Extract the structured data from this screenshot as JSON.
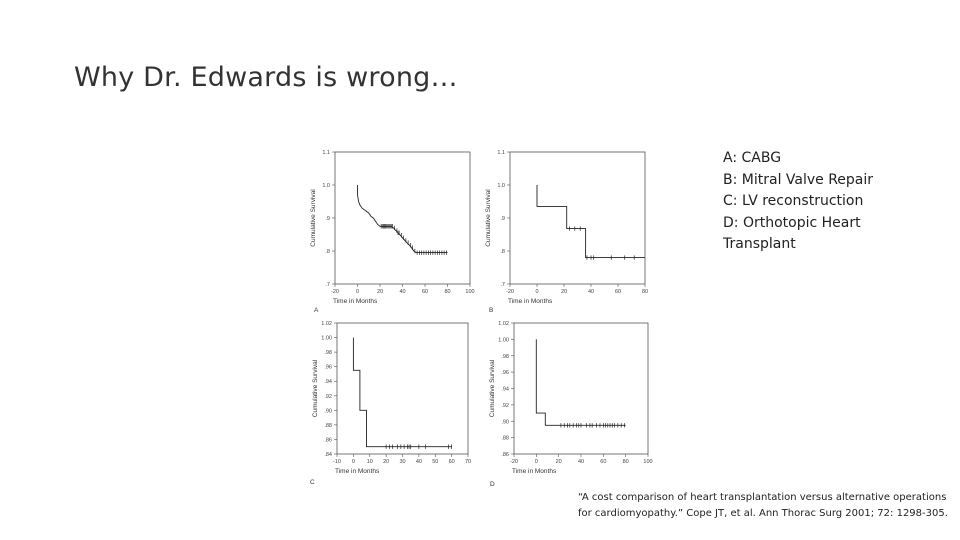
{
  "slide": {
    "title": "Why Dr. Edwards is wrong…",
    "legend": [
      "A: CABG",
      "B: Mitral Valve Repair",
      "C: LV reconstruction",
      "D: Orthotopic Heart Transplant"
    ],
    "citation": "“A cost comparison of heart transplantation versus alternative operations for cardiomyopathy.” Cope JT, et al. Ann Thorac Surg 2001; 72: 1298-305."
  },
  "chart_data": [
    {
      "type": "line",
      "letter": "A",
      "xlabel": "Time in Months",
      "ylabel": "Cumulative Survival",
      "xlim": [
        -20,
        100
      ],
      "ylim": [
        0.7,
        1.1
      ],
      "xticks": [
        "-20",
        "0",
        "20",
        "40",
        "60",
        "80",
        "100"
      ],
      "yticks": [
        ".7",
        ".8",
        ".9",
        "1.0",
        "1.1"
      ],
      "tick_values_x": [
        -20,
        0,
        20,
        40,
        60,
        80,
        100
      ],
      "tick_values_y": [
        0.7,
        0.8,
        0.9,
        1.0,
        1.1
      ],
      "points": [
        [
          0,
          1.0
        ],
        [
          0,
          0.97
        ],
        [
          1,
          0.95
        ],
        [
          2,
          0.94
        ],
        [
          3,
          0.935
        ],
        [
          4,
          0.93
        ],
        [
          6,
          0.925
        ],
        [
          8,
          0.92
        ],
        [
          10,
          0.915
        ],
        [
          12,
          0.905
        ],
        [
          14,
          0.9
        ],
        [
          16,
          0.89
        ],
        [
          18,
          0.88
        ],
        [
          20,
          0.875
        ],
        [
          30,
          0.875
        ],
        [
          32,
          0.87
        ],
        [
          34,
          0.862
        ],
        [
          36,
          0.855
        ],
        [
          38,
          0.848
        ],
        [
          40,
          0.84
        ],
        [
          42,
          0.832
        ],
        [
          44,
          0.825
        ],
        [
          46,
          0.818
        ],
        [
          48,
          0.81
        ],
        [
          50,
          0.8
        ],
        [
          52,
          0.795
        ],
        [
          80,
          0.795
        ]
      ],
      "censored": [
        21,
        22,
        23,
        24,
        25,
        26,
        27,
        28,
        29,
        30,
        31,
        33,
        35,
        36,
        37,
        39,
        41,
        43,
        45,
        47,
        49,
        51,
        53,
        55,
        57,
        59,
        61,
        63,
        65,
        67,
        69,
        71,
        73,
        75,
        77,
        79
      ]
    },
    {
      "type": "line",
      "letter": "B",
      "xlabel": "Time in Months",
      "ylabel": "Cumulative Survival",
      "xlim": [
        -20,
        80
      ],
      "ylim": [
        0.7,
        1.1
      ],
      "xticks": [
        "-20",
        "0",
        "20",
        "40",
        "60",
        "80"
      ],
      "yticks": [
        ".7",
        ".8",
        ".9",
        "1.0",
        "1.1"
      ],
      "tick_values_x": [
        -20,
        0,
        20,
        40,
        60,
        80
      ],
      "tick_values_y": [
        0.7,
        0.8,
        0.9,
        1.0,
        1.1
      ],
      "points": [
        [
          0,
          1.0
        ],
        [
          0,
          0.935
        ],
        [
          22,
          0.935
        ],
        [
          22,
          0.868
        ],
        [
          36,
          0.868
        ],
        [
          36,
          0.78
        ],
        [
          80,
          0.78
        ]
      ],
      "censored": [
        24,
        28,
        32,
        37,
        40,
        42,
        55,
        65,
        72
      ]
    },
    {
      "type": "line",
      "letter": "C",
      "xlabel": "Time in Months",
      "ylabel": "Cumulative Survival",
      "xlim": [
        -10,
        70
      ],
      "ylim": [
        0.84,
        1.02
      ],
      "xticks": [
        "-10",
        "0",
        "10",
        "20",
        "30",
        "40",
        "50",
        "60",
        "70"
      ],
      "yticks": [
        ".84",
        ".86",
        ".88",
        ".90",
        ".92",
        ".94",
        ".96",
        ".98",
        "1.00",
        "1.02"
      ],
      "tick_values_x": [
        -10,
        0,
        10,
        20,
        30,
        40,
        50,
        60,
        70
      ],
      "tick_values_y": [
        0.84,
        0.86,
        0.88,
        0.9,
        0.92,
        0.94,
        0.96,
        0.98,
        1.0,
        1.02
      ],
      "points": [
        [
          0,
          1.0
        ],
        [
          0,
          0.955
        ],
        [
          4,
          0.955
        ],
        [
          4,
          0.9
        ],
        [
          8,
          0.9
        ],
        [
          8,
          0.85
        ],
        [
          60,
          0.85
        ]
      ],
      "censored": [
        20,
        22,
        24,
        27,
        29,
        31,
        33,
        34,
        35,
        40,
        44,
        58,
        60
      ]
    },
    {
      "type": "line",
      "letter": "D",
      "xlabel": "Time in Months",
      "ylabel": "Cumulative Survival",
      "xlim": [
        -20,
        100
      ],
      "ylim": [
        0.86,
        1.02
      ],
      "xticks": [
        "-20",
        "0",
        "20",
        "40",
        "60",
        "80",
        "100"
      ],
      "yticks": [
        ".86",
        ".88",
        ".90",
        ".92",
        ".94",
        ".96",
        ".98",
        "1.00",
        "1.02"
      ],
      "tick_values_x": [
        -20,
        0,
        20,
        40,
        60,
        80,
        100
      ],
      "tick_values_y": [
        0.86,
        0.88,
        0.9,
        0.92,
        0.94,
        0.96,
        0.98,
        1.0,
        1.02
      ],
      "points": [
        [
          0,
          1.0
        ],
        [
          0,
          0.91
        ],
        [
          8,
          0.91
        ],
        [
          8,
          0.895
        ],
        [
          80,
          0.895
        ]
      ],
      "censored": [
        22,
        25,
        28,
        30,
        33,
        36,
        38,
        40,
        45,
        48,
        50,
        54,
        57,
        60,
        62,
        64,
        66,
        68,
        70,
        73,
        76,
        79
      ]
    }
  ]
}
